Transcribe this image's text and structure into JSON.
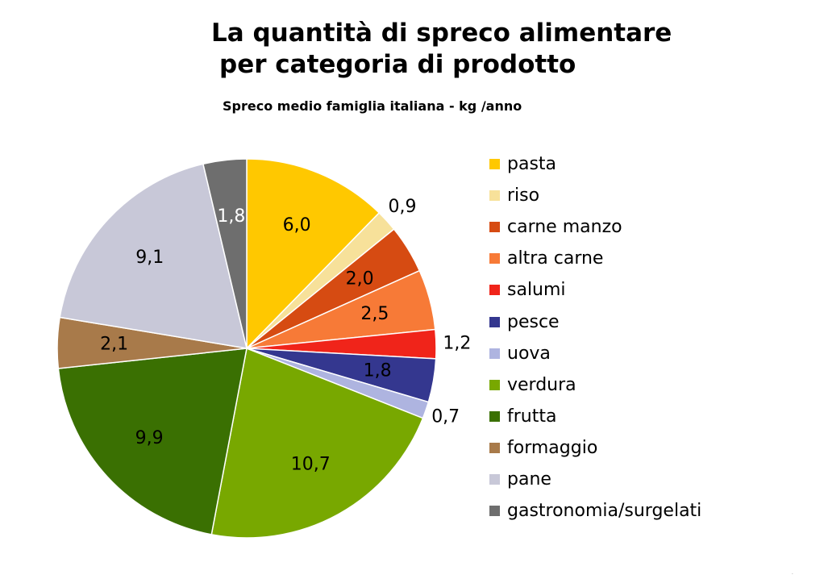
{
  "chart_data": {
    "type": "pie",
    "title_lines": [
      "La quantità di spreco alimentare",
      "per categoria di prodotto"
    ],
    "subtitle": "Spreco medio famiglia italiana - kg /anno",
    "legend_position": "right",
    "start_angle_deg": 0,
    "direction": "clockwise",
    "categories": [
      "pasta",
      "riso",
      "carne manzo",
      "altra carne",
      "salumi",
      "pesce",
      "uova",
      "verdura",
      "frutta",
      "formaggio",
      "pane",
      "gastronomia/surgelati"
    ],
    "values": [
      6.0,
      0.9,
      2.0,
      2.5,
      1.2,
      1.8,
      0.7,
      10.7,
      9.9,
      2.1,
      9.1,
      1.8
    ],
    "value_labels": [
      "6,0",
      "0,9",
      "2,0",
      "2,5",
      "1,2",
      "1,8",
      "0,7",
      "10,7",
      "9,9",
      "2,1",
      "9,1",
      "1,8"
    ],
    "label_outside": [
      false,
      true,
      false,
      false,
      true,
      false,
      true,
      false,
      false,
      false,
      false,
      false
    ],
    "colors": [
      "#FFC800",
      "#F7E19A",
      "#D64B12",
      "#F77A37",
      "#F0241A",
      "#34378F",
      "#AEB4E0",
      "#78A800",
      "#3A7002",
      "#A87A4A",
      "#C8C8D8",
      "#6E6E6E"
    ]
  }
}
